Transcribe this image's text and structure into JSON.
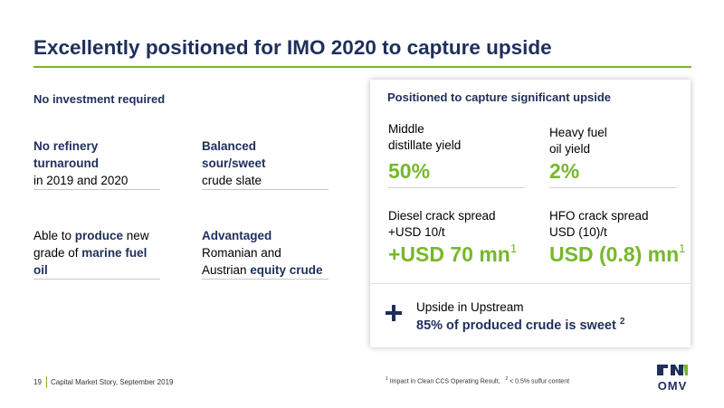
{
  "title": "Excellently positioned for IMO 2020 to capture upside",
  "left": {
    "heading": "No investment required",
    "cells": {
      "refinery": {
        "line1": "No refinery",
        "line2": "turnaround",
        "line3": "in 2019 and 2020"
      },
      "balanced": {
        "line1": "Balanced",
        "line2": "sour/sweet",
        "line3": "crude slate"
      },
      "marine": {
        "pre": "Able to ",
        "bold1": "produce",
        "post1": " new",
        "line2pre": "grade of ",
        "bold2": "marine fuel",
        "line3": "oil"
      },
      "advantaged": {
        "line1": "Advantaged",
        "line2": "Romanian and",
        "line3pre": "Austrian ",
        "bold3": "equity crude"
      }
    }
  },
  "panel": {
    "title": "Positioned to capture significant upside",
    "middle_distillate": {
      "label1": "Middle",
      "label2": "distillate yield",
      "value": "50%"
    },
    "heavy_fuel": {
      "label1": "Heavy fuel",
      "label2": "oil yield",
      "value": "2%"
    },
    "diesel": {
      "label1": "Diesel crack spread",
      "label2": "+USD 10/t",
      "value": "+USD 70 mn",
      "sup": "1"
    },
    "hfo": {
      "label1": "HFO crack spread",
      "label2": "USD (10)/t",
      "value": "USD (0.8) mn",
      "sup": "1"
    },
    "upstream": {
      "line1": "Upside in Upstream",
      "line2": "85% of produced crude is sweet",
      "sup": "2"
    }
  },
  "footer": {
    "page_number": "19",
    "text": "Capital Market Story, September 2019",
    "footnote1_mark": "1",
    "footnote1": " Impact in Clean CCS Operating Result,",
    "footnote2_mark": "2",
    "footnote2": " < 0.5% sulfur content"
  },
  "logo": {
    "text": "OMV"
  },
  "colors": {
    "navy": "#1f2f5c",
    "green": "#76b82a"
  }
}
